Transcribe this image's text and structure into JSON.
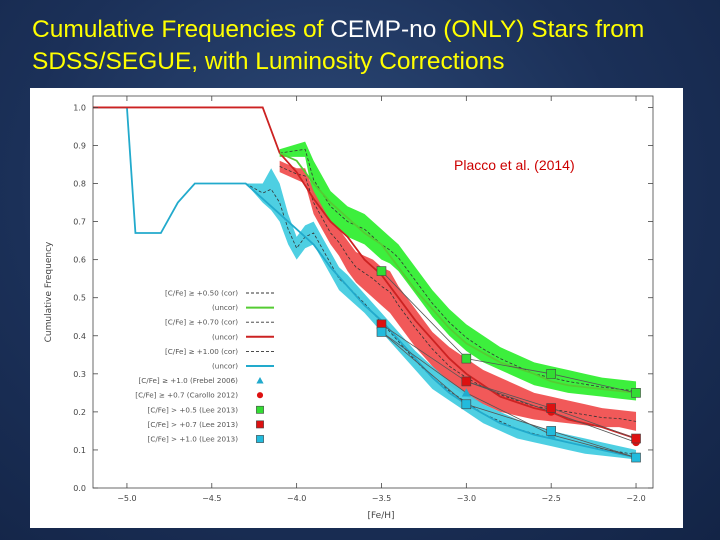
{
  "slide": {
    "title_part1": "Cumulative Frequencies of ",
    "title_highlight": "CEMP-no",
    "title_part2": " (ONLY) Stars from SDSS/SEGUE, with Luminosity Corrections"
  },
  "colors": {
    "background": "#1b3058",
    "title": "#ffff00",
    "green_band": "#33ee33",
    "red_band": "#f05050",
    "cyan_band": "#44cce0",
    "green_line": "#55cc33",
    "red_line": "#cc2222",
    "cyan_line": "#22aacc",
    "annotation": "#cc0000"
  },
  "chart_data": {
    "type": "line",
    "title": "",
    "xlabel": "[Fe/H]",
    "ylabel": "Cumulative Frequency",
    "xlim": [
      -5.2,
      -1.9
    ],
    "ylim": [
      0.0,
      1.03
    ],
    "xticks": [
      -5.0,
      -4.5,
      -4.0,
      -3.5,
      -3.0,
      -2.5,
      -2.0
    ],
    "xtick_labels": [
      "−5.0",
      "−4.5",
      "−4.0",
      "−3.5",
      "−3.0",
      "−2.5",
      "−2.0"
    ],
    "yticks": [
      0.0,
      0.1,
      0.2,
      0.3,
      0.4,
      0.5,
      0.6,
      0.7,
      0.8,
      0.9,
      1.0
    ],
    "ytick_labels": [
      "0.0",
      "0.1",
      "0.2",
      "0.3",
      "0.4",
      "0.5",
      "0.6",
      "0.7",
      "0.8",
      "0.9",
      "1.0"
    ],
    "grid": false,
    "annotation": "Placco et al. (2014)",
    "bands": [
      {
        "x": [
          -4.1,
          -3.95,
          -3.9,
          -3.85,
          -3.8,
          -3.75,
          -3.7,
          -3.65,
          -3.6,
          -3.55,
          -3.5,
          -3.45,
          -3.4,
          -3.3,
          -3.2,
          -3.1,
          -3.0,
          -2.9,
          -2.8,
          -2.7,
          -2.6,
          -2.5,
          -2.4,
          -2.3,
          -2.2,
          -2.1,
          -2.0
        ],
        "upper": [
          0.89,
          0.91,
          0.86,
          0.82,
          0.78,
          0.76,
          0.74,
          0.73,
          0.72,
          0.7,
          0.68,
          0.66,
          0.64,
          0.58,
          0.52,
          0.47,
          0.43,
          0.4,
          0.37,
          0.35,
          0.33,
          0.32,
          0.31,
          0.3,
          0.29,
          0.285,
          0.28
        ],
        "lower": [
          0.87,
          0.87,
          0.76,
          0.73,
          0.7,
          0.68,
          0.66,
          0.65,
          0.64,
          0.62,
          0.6,
          0.59,
          0.57,
          0.51,
          0.45,
          0.4,
          0.36,
          0.33,
          0.31,
          0.29,
          0.27,
          0.26,
          0.25,
          0.245,
          0.24,
          0.235,
          0.23
        ]
      },
      {
        "x": [
          -4.1,
          -4.0,
          -3.95,
          -3.9,
          -3.85,
          -3.8,
          -3.75,
          -3.7,
          -3.65,
          -3.6,
          -3.55,
          -3.5,
          -3.45,
          -3.4,
          -3.3,
          -3.2,
          -3.1,
          -3.0,
          -2.9,
          -2.8,
          -2.7,
          -2.6,
          -2.5,
          -2.4,
          -2.3,
          -2.2,
          -2.1,
          -2.0
        ],
        "upper": [
          0.86,
          0.84,
          0.84,
          0.78,
          0.74,
          0.7,
          0.68,
          0.65,
          0.62,
          0.61,
          0.6,
          0.58,
          0.57,
          0.53,
          0.47,
          0.41,
          0.37,
          0.34,
          0.31,
          0.29,
          0.27,
          0.25,
          0.24,
          0.23,
          0.22,
          0.21,
          0.205,
          0.2
        ],
        "lower": [
          0.83,
          0.81,
          0.8,
          0.72,
          0.68,
          0.64,
          0.61,
          0.57,
          0.54,
          0.52,
          0.5,
          0.48,
          0.46,
          0.43,
          0.37,
          0.32,
          0.27,
          0.24,
          0.22,
          0.2,
          0.19,
          0.18,
          0.175,
          0.17,
          0.165,
          0.16,
          0.16,
          0.15
        ]
      },
      {
        "x": [
          -4.3,
          -4.2,
          -4.15,
          -4.1,
          -4.05,
          -4.0,
          -3.95,
          -3.9,
          -3.85,
          -3.8,
          -3.75,
          -3.7,
          -3.6,
          -3.5,
          -3.4,
          -3.3,
          -3.2,
          -3.1,
          -3.0,
          -2.9,
          -2.8,
          -2.7,
          -2.6,
          -2.5,
          -2.4,
          -2.3,
          -2.2,
          -2.1,
          -2.0
        ],
        "upper": [
          0.8,
          0.8,
          0.84,
          0.8,
          0.72,
          0.66,
          0.69,
          0.7,
          0.66,
          0.62,
          0.58,
          0.56,
          0.51,
          0.46,
          0.41,
          0.36,
          0.32,
          0.28,
          0.25,
          0.22,
          0.2,
          0.18,
          0.165,
          0.15,
          0.14,
          0.13,
          0.12,
          0.11,
          0.1
        ],
        "lower": [
          0.8,
          0.75,
          0.73,
          0.7,
          0.64,
          0.6,
          0.63,
          0.64,
          0.6,
          0.56,
          0.52,
          0.5,
          0.46,
          0.41,
          0.36,
          0.31,
          0.26,
          0.23,
          0.2,
          0.17,
          0.15,
          0.13,
          0.12,
          0.11,
          0.1,
          0.09,
          0.085,
          0.08,
          0.075
        ]
      }
    ],
    "series": [
      {
        "name": "[C/Fe] ≥ +1.00 (uncor)",
        "x": [
          -5.2,
          -5.0,
          -4.95,
          -4.9,
          -4.8,
          -4.7,
          -4.6,
          -4.5,
          -4.4,
          -4.3,
          -4.2,
          -4.1,
          -4.0,
          -3.9,
          -3.8,
          -3.7,
          -3.6,
          -3.5,
          -3.4,
          -3.3,
          -3.2,
          -3.1,
          -3.0,
          -2.8,
          -2.6,
          -2.5,
          -2.4,
          -2.2,
          -2.0
        ],
        "y": [
          1.0,
          1.0,
          0.67,
          0.67,
          0.67,
          0.75,
          0.8,
          0.8,
          0.8,
          0.8,
          0.76,
          0.72,
          0.68,
          0.64,
          0.58,
          0.53,
          0.48,
          0.44,
          0.39,
          0.34,
          0.29,
          0.25,
          0.22,
          0.17,
          0.14,
          0.13,
          0.12,
          0.1,
          0.08
        ]
      },
      {
        "name": "[C/Fe] ≥ +0.70 (uncor)",
        "x": [
          -5.2,
          -4.2,
          -4.1,
          -4.0,
          -3.9,
          -3.8,
          -3.7,
          -3.6,
          -3.5,
          -3.4,
          -3.3,
          -3.2,
          -3.1,
          -3.0,
          -2.8,
          -2.6,
          -2.5,
          -2.4,
          -2.2,
          -2.0
        ],
        "y": [
          1.0,
          1.0,
          0.88,
          0.83,
          0.76,
          0.7,
          0.66,
          0.6,
          0.56,
          0.5,
          0.44,
          0.39,
          0.34,
          0.3,
          0.24,
          0.21,
          0.2,
          0.18,
          0.16,
          0.13
        ]
      },
      {
        "name": "[C/Fe] ≥ +0.50 (uncor)",
        "x": [
          -4.1,
          -4.0,
          -3.9,
          -3.8,
          -3.7,
          -3.6,
          -3.5,
          -3.4,
          -3.3,
          -3.2,
          -3.1,
          -3.0,
          -2.8,
          -2.6,
          -2.5,
          -2.4,
          -2.2,
          -2.0
        ],
        "y": [
          0.88,
          0.86,
          0.8,
          0.75,
          0.71,
          0.67,
          0.64,
          0.58,
          0.52,
          0.47,
          0.42,
          0.38,
          0.33,
          0.3,
          0.28,
          0.27,
          0.26,
          0.25
        ]
      }
    ],
    "markers": [
      {
        "label": "[C/Fe] ≥ +1.0 (Frebel 2006)",
        "shape": "triangle",
        "color": "#22aacc",
        "x": [
          -3.5,
          -3.0,
          -2.5,
          -2.0
        ],
        "y": [
          0.41,
          0.25,
          0.14,
          0.08
        ]
      },
      {
        "label": "[C/Fe] ≥ +0.7 (Carollo 2012)",
        "shape": "circle",
        "color": "#dd1111",
        "x": [
          -3.0,
          -2.5,
          -2.0
        ],
        "y": [
          0.28,
          0.2,
          0.12
        ]
      },
      {
        "label": "[C/Fe] > +0.5 (Lee 2013)",
        "shape": "square",
        "color": "#33dd33",
        "x": [
          -3.5,
          -3.0,
          -2.5,
          -2.0
        ],
        "y": [
          0.57,
          0.34,
          0.3,
          0.25
        ]
      },
      {
        "label": "[C/Fe] > +0.7 (Lee 2013)",
        "shape": "square",
        "color": "#dd1111",
        "x": [
          -3.5,
          -3.0,
          -2.5,
          -2.0
        ],
        "y": [
          0.43,
          0.28,
          0.21,
          0.13
        ]
      },
      {
        "label": "[C/Fe] > +1.0 (Lee 2013)",
        "shape": "square",
        "color": "#22bbdd",
        "x": [
          -3.5,
          -3.0,
          -2.5,
          -2.0
        ],
        "y": [
          0.41,
          0.22,
          0.15,
          0.08
        ]
      }
    ],
    "legend": {
      "position": "left-bottom",
      "entries": [
        {
          "label": "[C/Fe] ≥ +0.50 (cor)",
          "kind": "dash",
          "color": "#333333"
        },
        {
          "label": "(uncor)",
          "kind": "line",
          "color": "#55cc33"
        },
        {
          "label": "[C/Fe] ≥ +0.70 (cor)",
          "kind": "dash",
          "color": "#333333"
        },
        {
          "label": "(uncor)",
          "kind": "line",
          "color": "#cc2222"
        },
        {
          "label": "[C/Fe] ≥ +1.00 (cor)",
          "kind": "dash",
          "color": "#333333"
        },
        {
          "label": "(uncor)",
          "kind": "line",
          "color": "#22aacc"
        },
        {
          "label": "[C/Fe] ≥ +1.0 (Frebel 2006)",
          "kind": "triangle",
          "color": "#22aacc"
        },
        {
          "label": "[C/Fe] ≥ +0.7 (Carollo 2012)",
          "kind": "circle",
          "color": "#dd1111"
        },
        {
          "label": "[C/Fe] > +0.5 (Lee 2013)",
          "kind": "square",
          "color": "#33dd33"
        },
        {
          "label": "[C/Fe] > +0.7 (Lee 2013)",
          "kind": "square",
          "color": "#dd1111"
        },
        {
          "label": "[C/Fe] > +1.0 (Lee 2013)",
          "kind": "square",
          "color": "#22bbdd"
        }
      ]
    }
  }
}
